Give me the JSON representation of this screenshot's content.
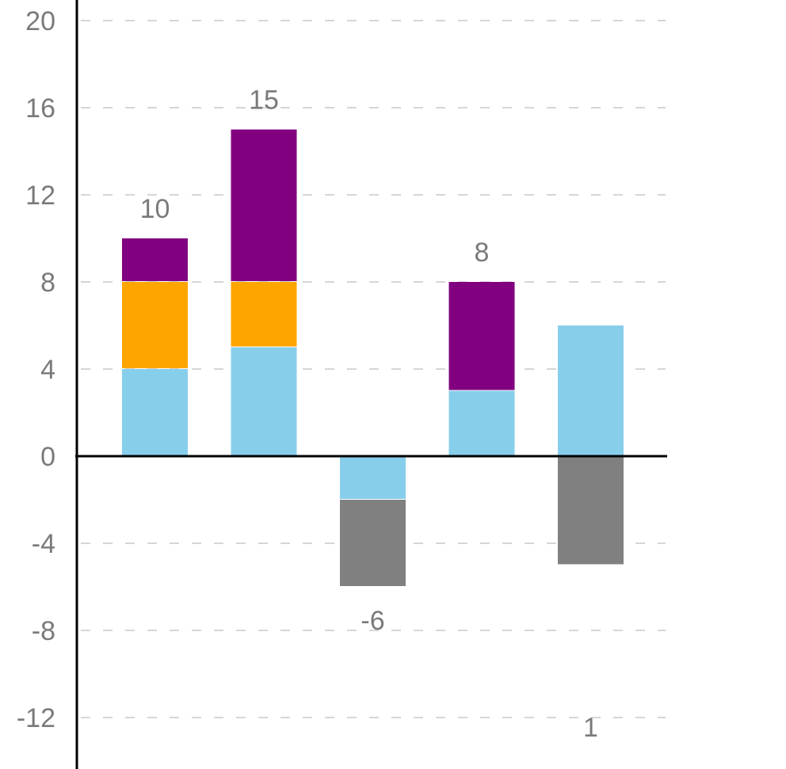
{
  "chart_data": {
    "type": "bar",
    "stacked": true,
    "title": "",
    "xlabel": "",
    "ylabel": "",
    "ylim": [
      -14,
      20
    ],
    "yticks": [
      20,
      16,
      12,
      8,
      4,
      0,
      -4,
      -8,
      -12
    ],
    "grid": true,
    "legend": "none",
    "categories": [
      "",
      "",
      "",
      "",
      ""
    ],
    "series": [
      {
        "color": "#87ceeb",
        "values": [
          4,
          5,
          -2,
          3,
          6
        ]
      },
      {
        "color": "#ffa500",
        "values": [
          4,
          3,
          0,
          0,
          0
        ]
      },
      {
        "color": "#800080",
        "values": [
          2,
          7,
          0,
          5,
          0
        ]
      },
      {
        "color": "#808080",
        "values": [
          0,
          0,
          -4,
          0,
          -5
        ]
      }
    ],
    "total_labels": [
      "10",
      "15",
      "-6",
      "8",
      "1"
    ]
  }
}
